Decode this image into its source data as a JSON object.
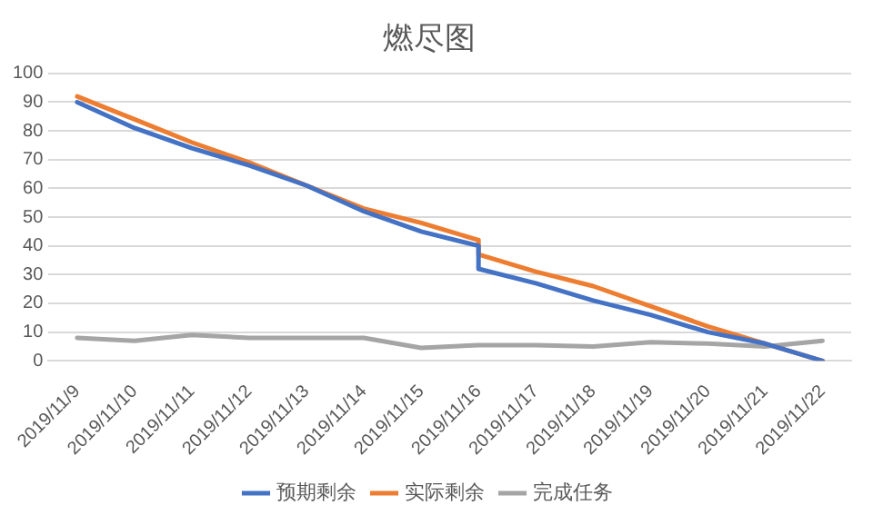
{
  "chart_data": {
    "type": "line",
    "title": "燃尽图",
    "x": [
      "2019-11-09",
      "2019-11-10",
      "2019-11-11",
      "2019-11-12",
      "2019-11-13",
      "2019-11-14",
      "2019-11-15",
      "2019-11-16",
      "2019-11-16",
      "2019-11-17",
      "2019-11-18",
      "2019-11-19",
      "2019-11-20",
      "2019-11-21",
      "2019-11-22"
    ],
    "series": [
      {
        "name": "预期剩余",
        "color": "#4472c4",
        "values": [
          90,
          81,
          74,
          68,
          61,
          52,
          45,
          40,
          32,
          27,
          21,
          16,
          10,
          6,
          0
        ]
      },
      {
        "name": "实际剩余",
        "color": "#ed7d31",
        "values": [
          92,
          84,
          76,
          69,
          61,
          53,
          48,
          42,
          37,
          31,
          26,
          19,
          12,
          6,
          0
        ]
      },
      {
        "name": "完成任务",
        "color": "#a5a5a5",
        "values": [
          8,
          7,
          9,
          8,
          8,
          8,
          4.5,
          5.5,
          5.5,
          5.5,
          5,
          6.5,
          6,
          5,
          7
        ]
      }
    ],
    "xlim": [
      "2019-11-08T12:00",
      "2019-11-22T12:00"
    ],
    "xticks": [
      {
        "value": "2019-11-09",
        "label": "2019/11/9"
      },
      {
        "value": "2019-11-10",
        "label": "2019/11/10"
      },
      {
        "value": "2019-11-11",
        "label": "2019/11/11"
      },
      {
        "value": "2019-11-12",
        "label": "2019/11/12"
      },
      {
        "value": "2019-11-13",
        "label": "2019/11/13"
      },
      {
        "value": "2019-11-14",
        "label": "2019/11/14"
      },
      {
        "value": "2019-11-15",
        "label": "2019/11/15"
      },
      {
        "value": "2019-11-16",
        "label": "2019/11/16"
      },
      {
        "value": "2019-11-17",
        "label": "2019/11/17"
      },
      {
        "value": "2019-11-18",
        "label": "2019/11/18"
      },
      {
        "value": "2019-11-19",
        "label": "2019/11/19"
      },
      {
        "value": "2019-11-20",
        "label": "2019/11/20"
      },
      {
        "value": "2019-11-21",
        "label": "2019/11/21"
      },
      {
        "value": "2019-11-22",
        "label": "2019/11/22"
      }
    ],
    "ylim": [
      0,
      100
    ],
    "yticks": [
      0,
      10,
      20,
      30,
      40,
      50,
      60,
      70,
      80,
      90,
      100
    ],
    "grid": "y",
    "legend": "bottom"
  }
}
